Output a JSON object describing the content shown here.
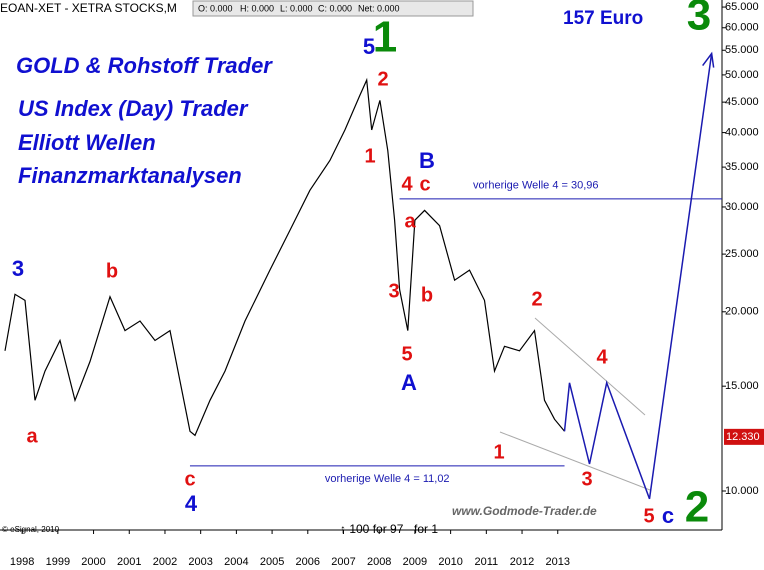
{
  "chart_data": {
    "type": "line",
    "header": {
      "symbol": "EOAN-XET - XETRA STOCKS,M",
      "fields": [
        "O: 0.000",
        "H: 0.000",
        "L: 0.000",
        "C: 0.000",
        "Net: 0.000"
      ]
    },
    "promo_lines": [
      "GOLD & Rohstoff Trader",
      "US Index (Day) Trader",
      "Elliott Wellen",
      "Finanzmarktanalysen"
    ],
    "target_label": "157 Euro",
    "copyright": "© eSignal, 2010",
    "split_notes": [
      "↑ 100 for 97",
      "for 1"
    ],
    "watermark": "www.Godmode-Trader.de",
    "log_scale": true,
    "xlim": [
      1997.38,
      2017.6
    ],
    "xticks": [
      1998,
      1999,
      2000,
      2001,
      2002,
      2003,
      2004,
      2005,
      2006,
      2007,
      2008,
      2009,
      2010,
      2011,
      2012,
      2013
    ],
    "ylim": [
      8.6,
      66.8
    ],
    "yticks": [
      {
        "value": 10,
        "label": "10.000"
      },
      {
        "value": 15,
        "label": "15.000"
      },
      {
        "value": 20,
        "label": "20.000"
      },
      {
        "value": 25,
        "label": "25.000"
      },
      {
        "value": 30,
        "label": "30.000"
      },
      {
        "value": 35,
        "label": "35.000"
      },
      {
        "value": 40,
        "label": "40.000"
      },
      {
        "value": 45,
        "label": "45.000"
      },
      {
        "value": 50,
        "label": "50.000"
      },
      {
        "value": 55,
        "label": "55.000"
      },
      {
        "value": 60,
        "label": "60.000"
      },
      {
        "value": 65,
        "label": "65.000"
      }
    ],
    "series": [
      {
        "color": "#000000",
        "x": [
          1997.52,
          1997.8,
          1998.08,
          1998.36,
          1998.64,
          1999.06,
          1999.48,
          1999.9,
          2000.46,
          2000.88,
          2001.3,
          2001.72,
          2002.14,
          2002.42,
          2002.7,
          2002.84,
          2003.26,
          2003.68,
          2004.24,
          2004.94,
          2005.5,
          2006.06,
          2006.62,
          2007.04,
          2007.46,
          2007.65,
          2007.79,
          2008.02,
          2008.24,
          2008.43,
          2008.57,
          2008.8,
          2009.0,
          2009.27,
          2009.69,
          2010.11,
          2010.53,
          2010.95,
          2011.23,
          2011.51,
          2011.93,
          2012.35,
          2012.63,
          2012.91,
          2013.19
        ],
        "values": [
          17.2,
          21.4,
          20.9,
          14.2,
          15.9,
          17.9,
          14.2,
          16.5,
          21.2,
          18.6,
          19.3,
          17.9,
          18.6,
          15.3,
          12.6,
          12.4,
          14.2,
          15.9,
          19.3,
          23.5,
          27.4,
          32.0,
          35.9,
          40.4,
          46.2,
          49.0,
          40.4,
          45.3,
          37.3,
          28.5,
          21.8,
          18.6,
          28.5,
          29.6,
          27.9,
          22.6,
          23.5,
          20.9,
          15.9,
          17.5,
          17.2,
          18.6,
          14.2,
          13.2,
          12.6
        ]
      },
      {
        "color": "#1a1ab0",
        "x": [
          2013.19,
          2013.33,
          2013.89,
          2014.37,
          2015.57,
          2017.31
        ],
        "values": [
          12.6,
          15.2,
          11.1,
          15.2,
          9.7,
          54.3
        ]
      }
    ],
    "last_price": {
      "value": 12.33,
      "label": "12.330"
    },
    "levels": [
      {
        "label": "vorherige Welle 4 = 30,96",
        "value": 30.96,
        "from": 2008.57
      },
      {
        "label": "vorherige Welle 4 = 11,02",
        "value": 11.02,
        "from": 2002.7,
        "to": 2013.19
      }
    ],
    "wave_labels": [
      {
        "text": "5",
        "color": "#1010d0"
      },
      {
        "text": "1",
        "color": "#0a8a0a"
      },
      {
        "text": "2",
        "color": "#e01010"
      },
      {
        "text": "1",
        "color": "#e01010"
      },
      {
        "text": "B",
        "color": "#1010d0"
      },
      {
        "text": "4",
        "color": "#e01010"
      },
      {
        "text": "c",
        "color": "#e01010"
      },
      {
        "text": "a",
        "color": "#e01010"
      },
      {
        "text": "3",
        "color": "#e01010"
      },
      {
        "text": "b",
        "color": "#e01010"
      },
      {
        "text": "5",
        "color": "#e01010"
      },
      {
        "text": "A",
        "color": "#1010d0"
      },
      {
        "text": "3",
        "color": "#1010d0"
      },
      {
        "text": "b",
        "color": "#e01010"
      },
      {
        "text": "a",
        "color": "#e01010"
      },
      {
        "text": "c",
        "color": "#e01010"
      },
      {
        "text": "4",
        "color": "#1010d0"
      },
      {
        "text": "2",
        "color": "#e01010"
      },
      {
        "text": "4",
        "color": "#e01010"
      },
      {
        "text": "1",
        "color": "#e01010"
      },
      {
        "text": "3",
        "color": "#e01010"
      },
      {
        "text": "5",
        "color": "#e01010"
      },
      {
        "text": "c",
        "color": "#1010d0"
      },
      {
        "text": "2",
        "color": "#0a8a0a"
      },
      {
        "text": "3",
        "color": "#0a8a0a"
      }
    ]
  }
}
